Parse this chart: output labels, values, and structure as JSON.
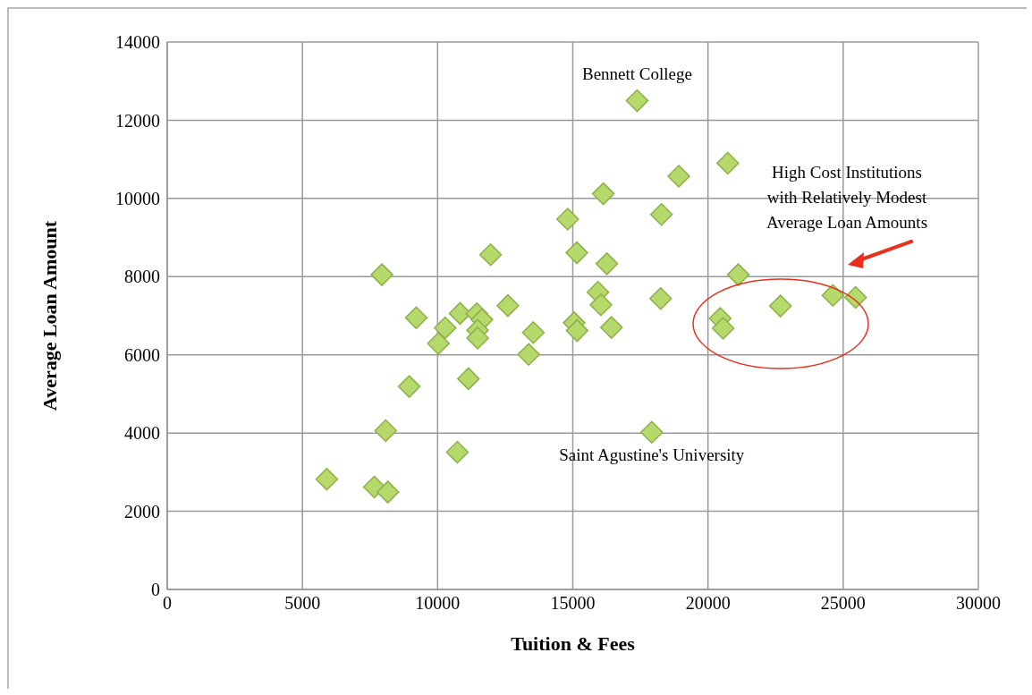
{
  "chart_data": {
    "type": "scatter",
    "xlabel": "Tuition & Fees",
    "ylabel": "Average Loan Amount",
    "xlim": [
      0,
      30000
    ],
    "xticks": [
      0,
      5000,
      10000,
      15000,
      20000,
      25000,
      30000
    ],
    "ylim": [
      0,
      14000
    ],
    "yticks": [
      0,
      2000,
      4000,
      6000,
      8000,
      10000,
      12000,
      14000
    ],
    "grid": true,
    "marker": "diamond",
    "color": "#b5d96a",
    "x": [
      5900,
      7660,
      8160,
      7940,
      8080,
      8950,
      9210,
      10030,
      10280,
      10730,
      10830,
      11140,
      11450,
      11640,
      11480,
      11480,
      11960,
      12600,
      13370,
      13540,
      14810,
      15050,
      15160,
      15150,
      15930,
      16040,
      16130,
      16260,
      16430,
      17380,
      17920,
      18250,
      18280,
      18920,
      20450,
      20560,
      20730,
      21120,
      22680,
      24620,
      25460
    ],
    "values": [
      2820,
      2620,
      2490,
      8050,
      4060,
      5190,
      6950,
      6290,
      6690,
      3510,
      7060,
      5390,
      7050,
      6900,
      6630,
      6430,
      8560,
      7260,
      6010,
      6570,
      9470,
      6820,
      6620,
      8610,
      7600,
      7280,
      10120,
      8330,
      6700,
      12500,
      4020,
      7440,
      9590,
      10570,
      6930,
      6680,
      10900,
      8050,
      7250,
      7520,
      7470
    ],
    "annotations": [
      {
        "text": "Bennett College",
        "x": 17380,
        "y": 12500
      },
      {
        "text": "Saint Agustine's University",
        "x": 17920,
        "y": 4020
      },
      "High Cost Institutions with Relatively Modest Average Loan Amounts"
    ]
  }
}
